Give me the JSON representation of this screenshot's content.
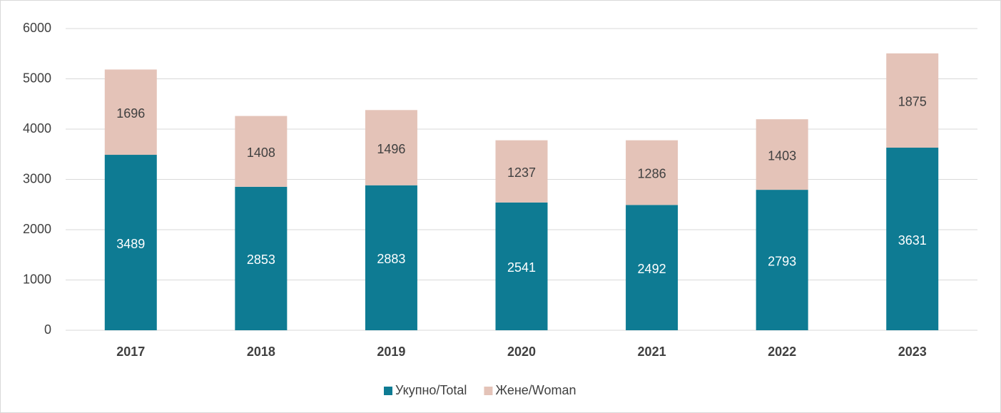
{
  "chart_data": {
    "type": "stacked_bar",
    "categories": [
      "2017",
      "2018",
      "2019",
      "2020",
      "2021",
      "2022",
      "2023"
    ],
    "series": [
      {
        "name": "Укупно/Total",
        "color": "#0e7b93",
        "values": [
          3489,
          2853,
          2883,
          2541,
          2492,
          2793,
          3631
        ]
      },
      {
        "name": "Жене/Woman",
        "color": "#e4c3b8",
        "values": [
          1696,
          1408,
          1496,
          1237,
          1286,
          1403,
          1875
        ]
      }
    ],
    "ylim": [
      0,
      6000
    ],
    "yticks": [
      0,
      1000,
      2000,
      3000,
      4000,
      5000,
      6000
    ],
    "grid": true,
    "legend": "bottom"
  }
}
